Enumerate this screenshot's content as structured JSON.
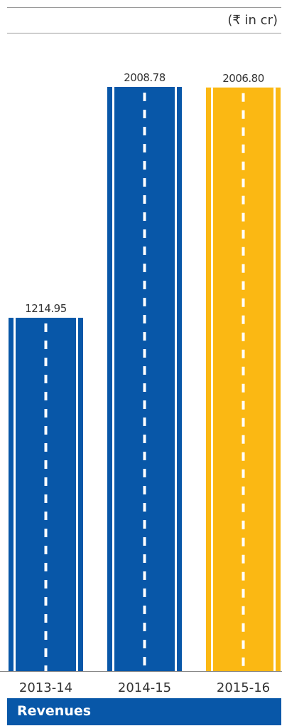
{
  "unit_label": "(₹ in cr)",
  "footer": {
    "title": "Revenues"
  },
  "colors": {
    "blue": "#0857a8",
    "yellow": "#fbb813",
    "axis": "#888888",
    "text": "#333333",
    "rule": "#9a9a9a"
  },
  "chart_data": {
    "type": "bar",
    "categories": [
      "2013-14",
      "2014-15",
      "2015-16"
    ],
    "values": [
      1214.95,
      2008.78,
      2006.8
    ],
    "value_labels": [
      "1214.95",
      "2008.78",
      "2006.80"
    ],
    "highlight_index": 2,
    "ylim": [
      0,
      2008.78
    ]
  }
}
